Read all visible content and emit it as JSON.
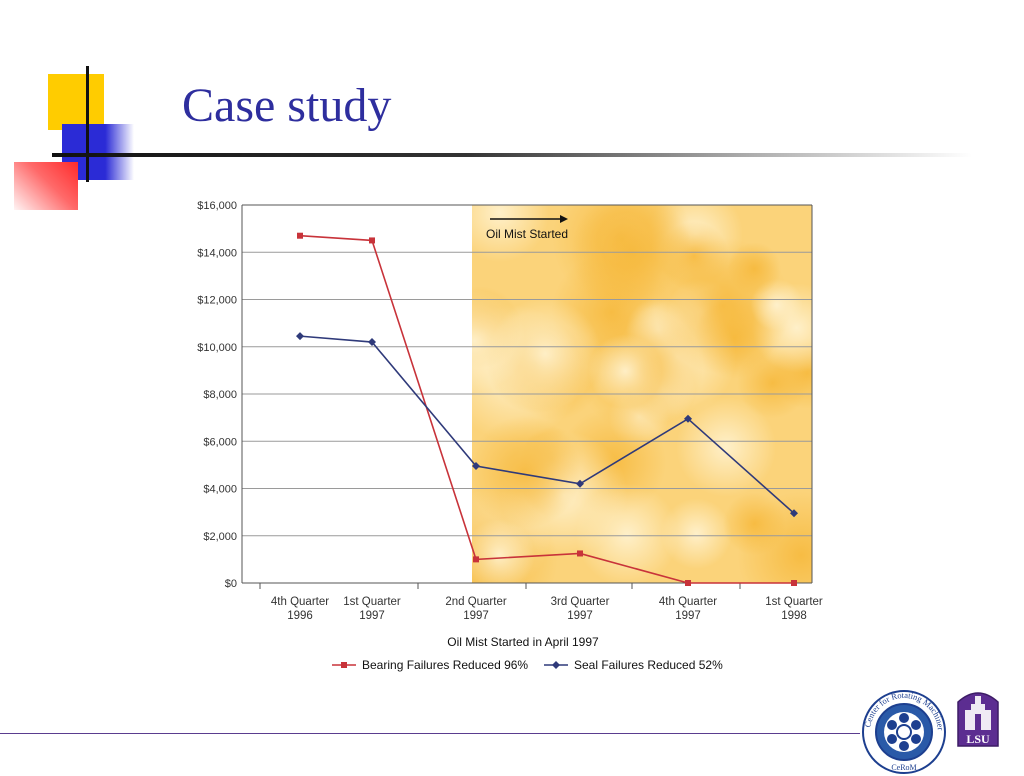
{
  "slide": {
    "title": "Case study",
    "accent_colors": {
      "title": "#2e2e9e",
      "yellow": "#ffcc00",
      "blue": "#2b2bd6",
      "red": "#ff2b2b"
    }
  },
  "chart_data": {
    "type": "line",
    "categories": [
      "4th Quarter\n1996",
      "1st Quarter\n1997",
      "2nd Quarter\n1997",
      "3rd Quarter\n1997",
      "4th Quarter\n1997",
      "1st Quarter\n1998"
    ],
    "xlabel": "Oil Mist Started in April 1997",
    "ylabel": "",
    "ylim": [
      0,
      16000
    ],
    "yticks": [
      "$0",
      "$2,000",
      "$4,000",
      "$6,000",
      "$8,000",
      "$10,000",
      "$12,000",
      "$14,000",
      "$16,000"
    ],
    "grid": true,
    "legend_position": "bottom",
    "annotation": "Oil Mist Started",
    "shaded_region_start_category": "2nd Quarter\n1997",
    "series": [
      {
        "name": "Bearing Failures Reduced 96%",
        "color": "#c8333a",
        "marker": "square",
        "values": [
          14700,
          14500,
          1000,
          1250,
          0,
          0
        ]
      },
      {
        "name": "Seal Failures Reduced 52%",
        "color": "#2f3a7a",
        "marker": "diamond",
        "values": [
          10450,
          10200,
          4950,
          4200,
          6950,
          2950
        ]
      }
    ]
  },
  "logos": {
    "cerom": {
      "ring_text": "Center for Rotating Machinery",
      "label": "CeRoM"
    },
    "lsu": {
      "label": "LSU"
    }
  }
}
